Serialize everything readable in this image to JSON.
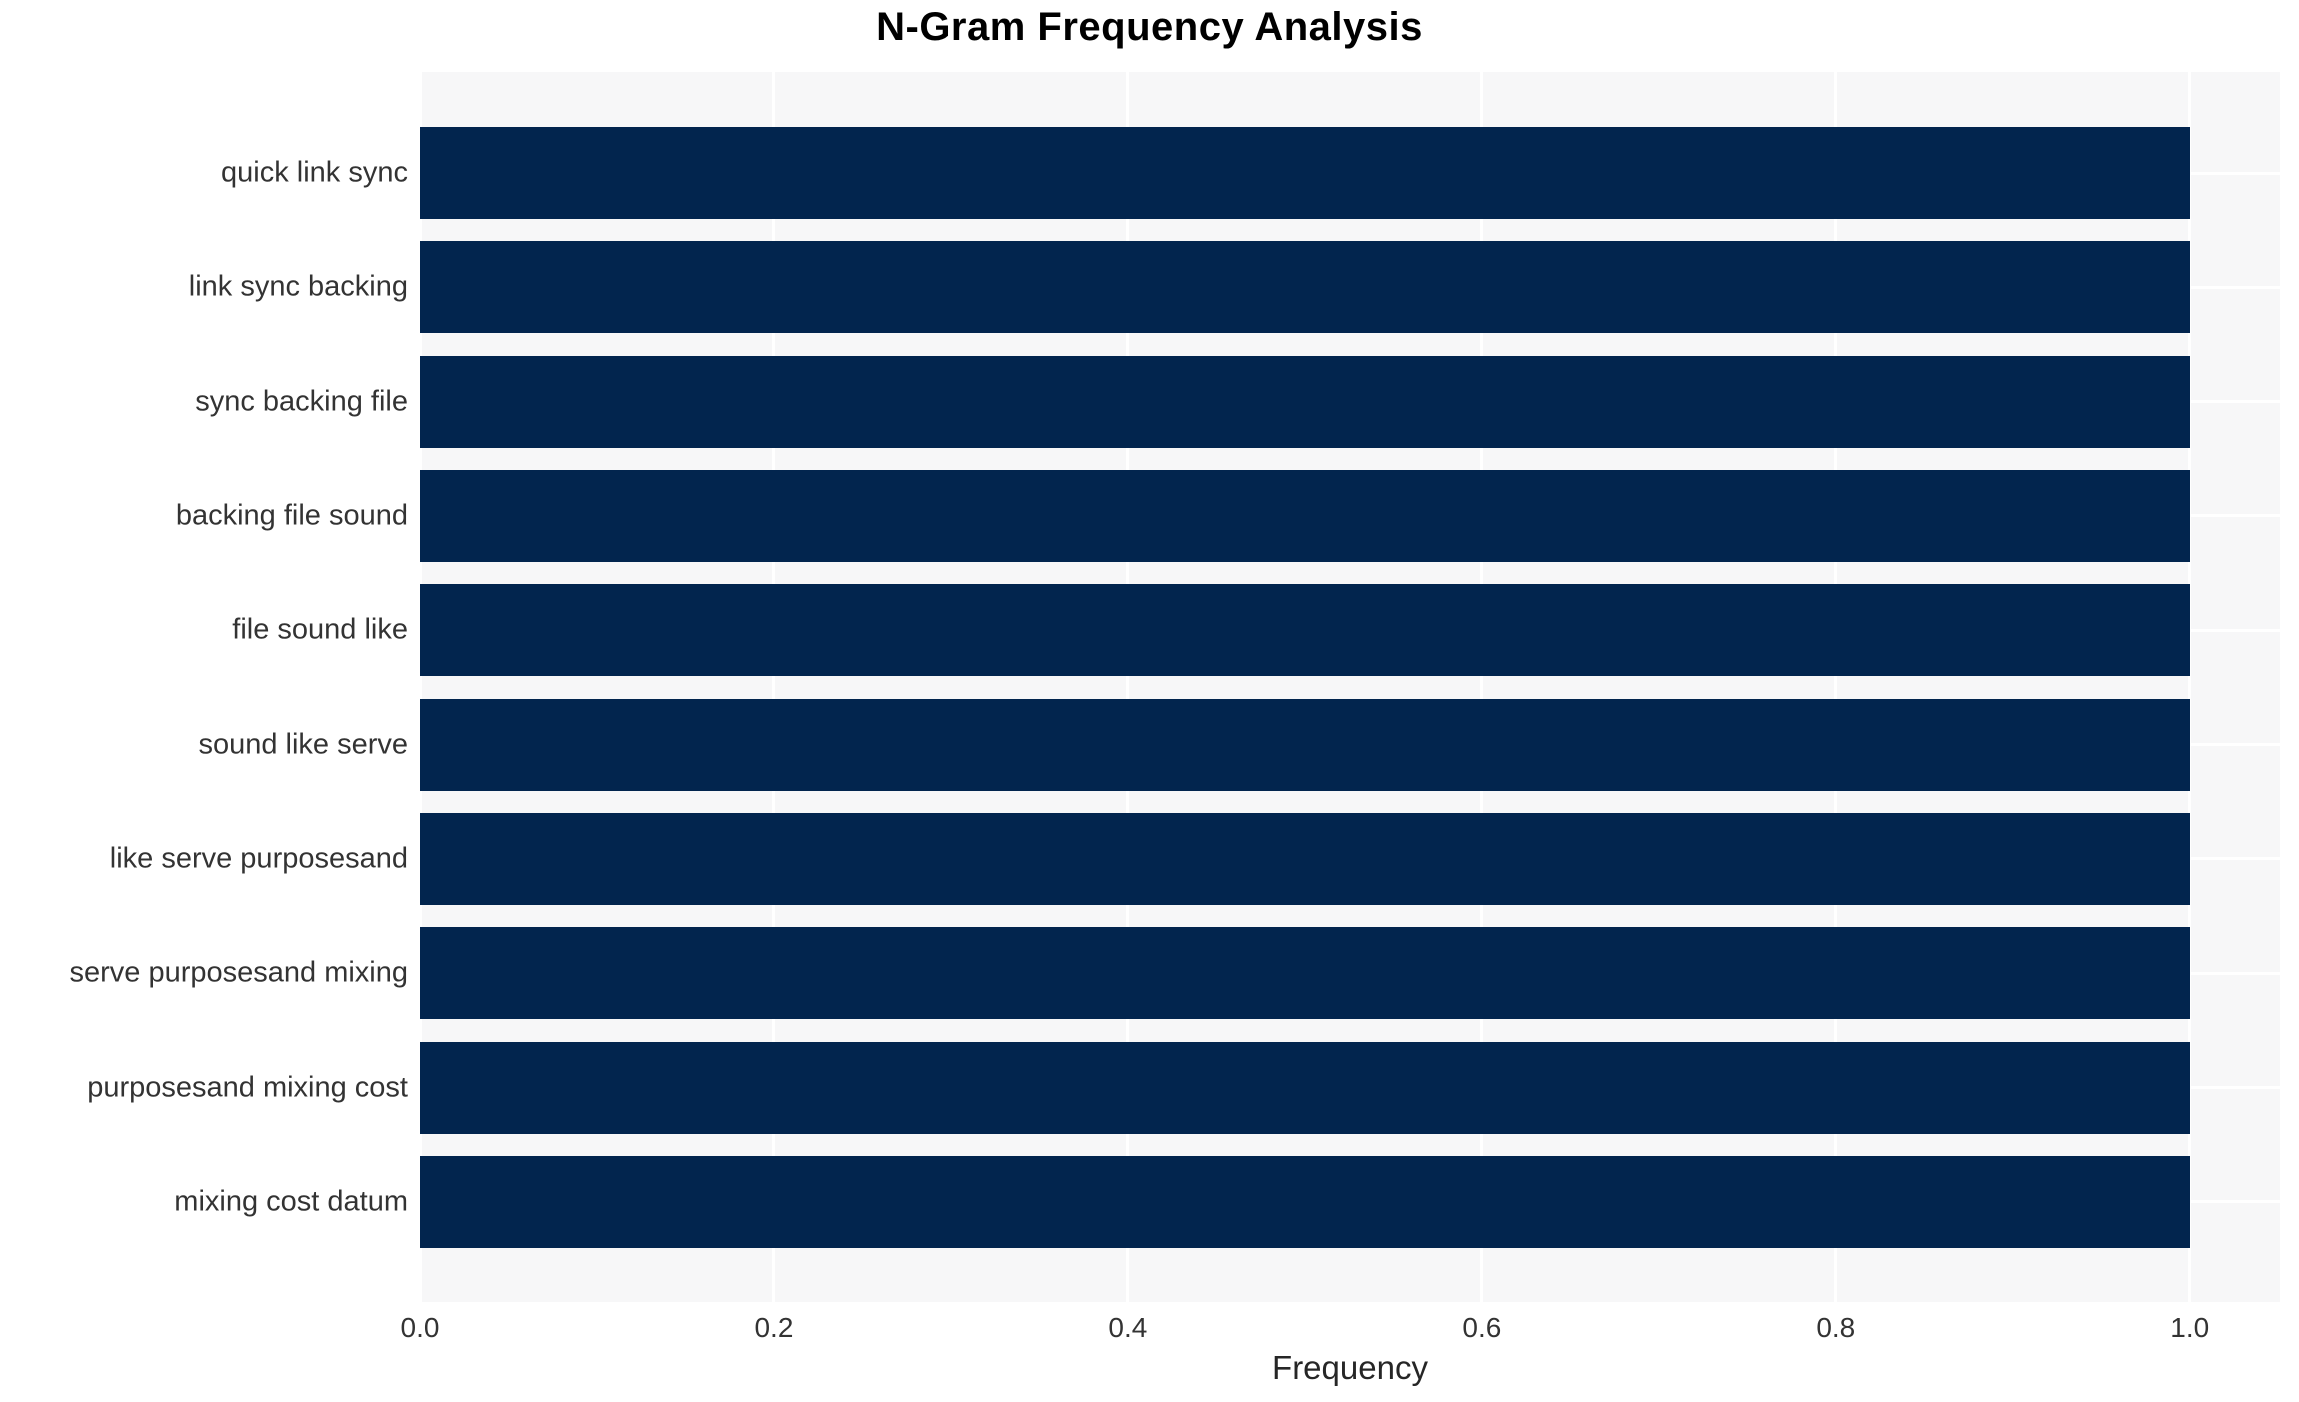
{
  "chart_data": {
    "type": "bar",
    "orientation": "horizontal",
    "title": "N-Gram Frequency Analysis",
    "xlabel": "Frequency",
    "ylabel": "",
    "categories": [
      "quick link sync",
      "link sync backing",
      "sync backing file",
      "backing file sound",
      "file sound like",
      "sound like serve",
      "like serve purposesand",
      "serve purposesand mixing",
      "purposesand mixing cost",
      "mixing cost datum"
    ],
    "values": [
      1.0,
      1.0,
      1.0,
      1.0,
      1.0,
      1.0,
      1.0,
      1.0,
      1.0,
      1.0
    ],
    "xlim": [
      0,
      1.051
    ],
    "xticks": [
      "0.0",
      "0.2",
      "0.4",
      "0.6",
      "0.8",
      "1.0"
    ],
    "xtick_values": [
      0.0,
      0.2,
      0.4,
      0.6,
      0.8,
      1.0
    ],
    "grid": true,
    "legend": false,
    "colors": {
      "bar": "#02254E",
      "plot_background": "#F7F7F8",
      "gridline": "#FFFFFF",
      "title_text": "#000000",
      "tick_text": "#333333"
    }
  }
}
